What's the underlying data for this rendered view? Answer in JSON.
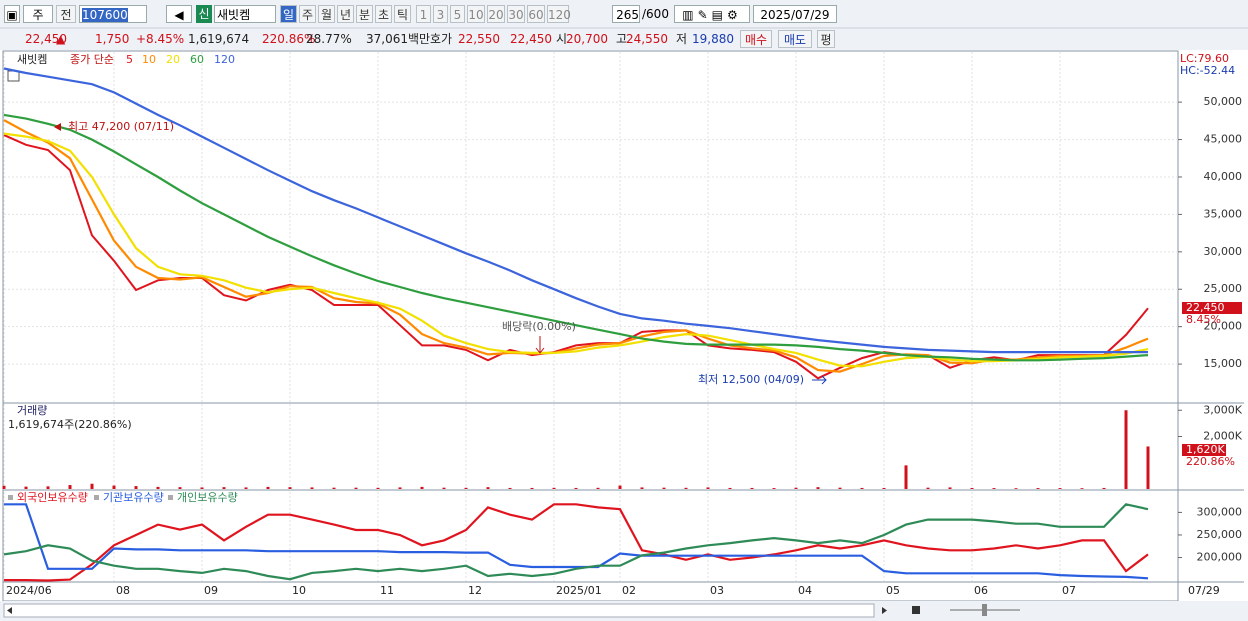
{
  "toolbar": {
    "market": "주",
    "prev": "전",
    "code": "107600",
    "badge": "신",
    "name": "새빗켐",
    "periods": [
      "일",
      "주",
      "월",
      "년",
      "분",
      "초",
      "틱"
    ],
    "units": [
      "1",
      "3",
      "5",
      "10",
      "20",
      "30",
      "60",
      "120"
    ],
    "count": "265",
    "max": "/600",
    "date": "2025/07/29"
  },
  "quote": {
    "price": "22,450",
    "arrow": "▲",
    "change": "1,750",
    "rate": "+8.45%",
    "volume": "1,619,674",
    "vol_ratio": "220.86%",
    "turnover": "28.77%",
    "amount": "37,061백만",
    "ask_label": "호가",
    "ask": "22,550",
    "bid": "22,450",
    "open_label": "시",
    "open": "20,700",
    "high_label": "고",
    "high": "24,550",
    "low_label": "저",
    "low": "19,880",
    "buy": "매수",
    "sell": "매도",
    "avg": "평"
  },
  "chart_data": [
    {
      "type": "line",
      "title": "새빗켐",
      "legend_label": "종가 단순",
      "grid": true,
      "categories": [
        "2024/06",
        null,
        null,
        null,
        null,
        "08",
        null,
        null,
        null,
        "09",
        null,
        null,
        null,
        "10",
        null,
        null,
        null,
        "11",
        null,
        null,
        null,
        "12",
        null,
        null,
        null,
        "2025/01",
        null,
        null,
        "02",
        null,
        null,
        null,
        "03",
        null,
        null,
        null,
        "04",
        null,
        null,
        null,
        "05",
        null,
        null,
        null,
        "06",
        null,
        null,
        null,
        "07",
        null,
        null,
        null,
        null
      ],
      "x_end_label": "07/29",
      "ylim": [
        9800,
        56700
      ],
      "yticks": [
        {
          "value": 15000,
          "label": "15,000"
        },
        {
          "value": 20000,
          "label": "20,000"
        },
        {
          "value": 25000,
          "label": "25,000"
        },
        {
          "value": 30000,
          "label": "30,000"
        },
        {
          "value": 35000,
          "label": "35,000"
        },
        {
          "value": 40000,
          "label": "40,000"
        },
        {
          "value": 45000,
          "label": "45,000"
        },
        {
          "value": 50000,
          "label": "50,000"
        }
      ],
      "annotations": [
        "최고 47,200 (07/11)",
        "최저 12,500 (04/09)",
        "배당락(0.00%)"
      ],
      "lc_label": "LC:79.60",
      "hc_label": "HC:-52.44",
      "last_label": "22,450",
      "last_rate_label": "8.45%",
      "series": [
        {
          "name": "5",
          "color": "#e0141e",
          "values": [
            45600,
            44300,
            43600,
            40900,
            32200,
            28800,
            24900,
            26200,
            26500,
            26500,
            24200,
            23500,
            24900,
            25600,
            24900,
            22900,
            22900,
            22900,
            20200,
            17500,
            17500,
            16900,
            15500,
            16900,
            16200,
            16600,
            17500,
            17800,
            17800,
            19300,
            19500,
            19500,
            17500,
            17100,
            16900,
            16600,
            15300,
            13100,
            14500,
            15800,
            16600,
            16200,
            16200,
            14500,
            15500,
            15900,
            15500,
            16200,
            16200,
            16200,
            16200,
            18900,
            22450
          ]
        },
        {
          "name": "10",
          "color": "#ff8a00",
          "values": [
            47600,
            46000,
            44600,
            42500,
            37000,
            31500,
            28000,
            26500,
            26300,
            26600,
            25300,
            24000,
            24500,
            25400,
            25300,
            23800,
            23300,
            23100,
            21600,
            19000,
            17800,
            17200,
            16300,
            16500,
            16400,
            16500,
            17100,
            17600,
            17800,
            18700,
            19300,
            19500,
            18400,
            17500,
            17100,
            16800,
            15900,
            14200,
            14000,
            15000,
            16100,
            16300,
            16200,
            15200,
            15100,
            15600,
            15600,
            15900,
            16100,
            16100,
            16200,
            17200,
            18400
          ]
        },
        {
          "name": "20",
          "color": "#f2e000",
          "values": [
            45800,
            45400,
            44800,
            43500,
            40000,
            35000,
            30500,
            28000,
            27000,
            26800,
            26200,
            25200,
            24600,
            25000,
            25200,
            24500,
            23800,
            23200,
            22400,
            20800,
            18800,
            17800,
            17000,
            16600,
            16500,
            16500,
            16700,
            17200,
            17500,
            18000,
            18600,
            19000,
            18800,
            18200,
            17600,
            17000,
            16500,
            15600,
            14800,
            14700,
            15300,
            15800,
            16000,
            15600,
            15400,
            15400,
            15500,
            15700,
            15900,
            16000,
            16100,
            16400,
            17000
          ]
        },
        {
          "name": "60",
          "color": "#2e9e3e",
          "values": [
            48300,
            47800,
            47100,
            46300,
            45000,
            43400,
            41700,
            40000,
            38200,
            36500,
            35000,
            33500,
            32000,
            30700,
            29400,
            28200,
            27100,
            26100,
            25300,
            24500,
            23800,
            23200,
            22600,
            22000,
            21400,
            20800,
            20200,
            19600,
            19000,
            18400,
            18000,
            17700,
            17600,
            17600,
            17600,
            17600,
            17500,
            17300,
            17000,
            16800,
            16500,
            16200,
            16000,
            15900,
            15700,
            15600,
            15500,
            15500,
            15600,
            15700,
            15800,
            16000,
            16200
          ]
        },
        {
          "name": "120",
          "color": "#3c64dc",
          "values": [
            54500,
            53900,
            53400,
            52900,
            52400,
            51300,
            49800,
            48300,
            46900,
            45400,
            43900,
            42400,
            40900,
            39500,
            38100,
            36900,
            35800,
            34600,
            33400,
            32200,
            31000,
            29800,
            28700,
            27500,
            26200,
            25000,
            23800,
            22700,
            21700,
            21100,
            20800,
            20400,
            20100,
            19800,
            19400,
            19000,
            18600,
            18200,
            17900,
            17600,
            17300,
            17100,
            16900,
            16800,
            16700,
            16600,
            16600,
            16600,
            16600,
            16600,
            16600,
            16600,
            16600
          ]
        }
      ]
    },
    {
      "type": "bar",
      "title": "거래량",
      "subtitle": "1,619,674주(220.86%)",
      "color": "#d0101a",
      "ylim": [
        0,
        3200
      ],
      "yticks": [
        {
          "value": 2000,
          "label": "2,000K"
        },
        {
          "value": 3000,
          "label": "3,000K"
        }
      ],
      "last_label": "1,620K",
      "last_rate_label": "220.86%",
      "values": [
        120,
        90,
        100,
        150,
        200,
        130,
        110,
        80,
        70,
        60,
        70,
        60,
        80,
        70,
        60,
        50,
        50,
        45,
        60,
        80,
        50,
        45,
        70,
        40,
        40,
        45,
        40,
        45,
        130,
        60,
        50,
        45,
        60,
        40,
        40,
        35,
        50,
        70,
        50,
        40,
        40,
        900,
        50,
        60,
        40,
        35,
        30,
        35,
        35,
        30,
        40,
        3000,
        1620
      ]
    },
    {
      "type": "line",
      "ylim": [
        148000,
        343000
      ],
      "yticks": [
        {
          "value": 200000,
          "label": "200,000"
        },
        {
          "value": 250000,
          "label": "250,000"
        },
        {
          "value": 300000,
          "label": "300,000"
        }
      ],
      "series": [
        {
          "name": "외국인보유수량",
          "color": "#e0141e",
          "values": [
            150000,
            150000,
            149000,
            151000,
            185000,
            227000,
            250000,
            273000,
            262000,
            273000,
            238000,
            268000,
            295000,
            295000,
            284000,
            273000,
            261000,
            261000,
            250000,
            227000,
            238000,
            261000,
            311000,
            295000,
            284000,
            318000,
            318000,
            311000,
            307000,
            216000,
            207000,
            195000,
            207000,
            195000,
            200000,
            207000,
            216000,
            227000,
            220000,
            227000,
            238000,
            227000,
            220000,
            216000,
            216000,
            220000,
            227000,
            220000,
            227000,
            238000,
            238000,
            170000,
            207000
          ]
        },
        {
          "name": "기관보유수량",
          "color": "#2a5ee0",
          "values": [
            318000,
            318000,
            175000,
            175000,
            175000,
            220000,
            218000,
            218000,
            216000,
            216000,
            216000,
            216000,
            214000,
            214000,
            214000,
            214000,
            214000,
            214000,
            212000,
            212000,
            212000,
            211000,
            211000,
            184000,
            179000,
            179000,
            179000,
            179000,
            209000,
            204000,
            204000,
            204000,
            204000,
            204000,
            204000,
            204000,
            204000,
            204000,
            204000,
            204000,
            170000,
            165000,
            165000,
            165000,
            165000,
            165000,
            165000,
            165000,
            161000,
            159000,
            158000,
            157000,
            154000
          ]
        },
        {
          "name": "개인보유수량",
          "color": "#2e8b57",
          "values": [
            207000,
            214000,
            227000,
            220000,
            193000,
            182000,
            175000,
            175000,
            170000,
            166000,
            175000,
            170000,
            159000,
            152000,
            166000,
            170000,
            175000,
            170000,
            175000,
            170000,
            175000,
            182000,
            159000,
            164000,
            159000,
            164000,
            175000,
            182000,
            182000,
            205000,
            211000,
            220000,
            227000,
            232000,
            238000,
            243000,
            238000,
            232000,
            238000,
            232000,
            250000,
            273000,
            284000,
            284000,
            284000,
            280000,
            275000,
            275000,
            268000,
            268000,
            268000,
            318000,
            307000
          ]
        }
      ]
    }
  ]
}
